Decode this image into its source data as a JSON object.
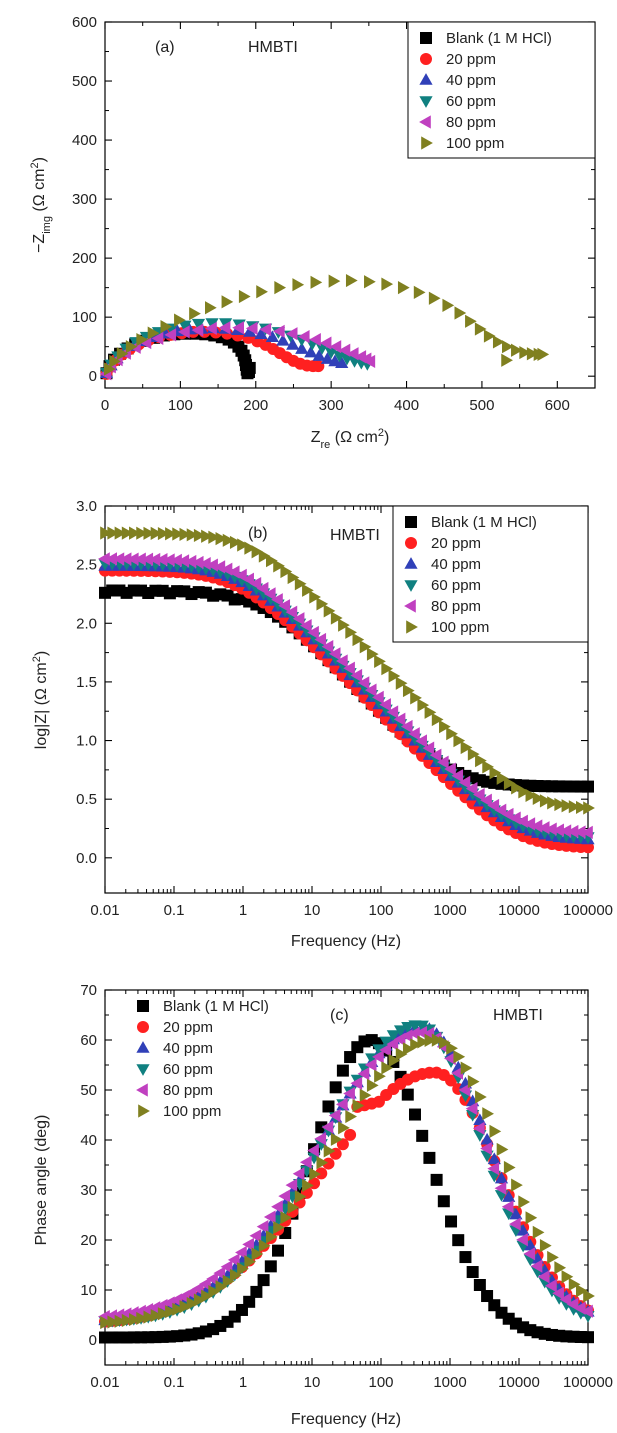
{
  "colors": {
    "Blank (1 M HCl)": "#000000",
    "20 ppm": "#ff2020",
    "40 ppm": "#3040b8",
    "60 ppm": "#108080",
    "80 ppm": "#c040c0",
    "100 ppm": "#808020"
  },
  "chart_data": [
    {
      "type": "scatter",
      "panel_label": "(a)",
      "annotation": "HMBTI",
      "title": "",
      "xlabel": {
        "main": "Z",
        "sub": "re",
        "unit_open": " (Ω cm",
        "sup": "2",
        "unit_close": ")"
      },
      "ylabel": {
        "main": "−Z",
        "sub": "img",
        "unit_open": " (Ω cm",
        "sup": "2",
        "unit_close": ")"
      },
      "xlim": [
        0,
        650
      ],
      "ylim": [
        -20,
        600
      ],
      "xticks": [
        0,
        100,
        200,
        300,
        400,
        500,
        600
      ],
      "yticks": [
        0,
        100,
        200,
        300,
        400,
        500,
        600
      ],
      "legend": "top-right",
      "series": [
        {
          "name": "Blank (1 M HCl)",
          "marker": "square",
          "points": [
            [
              2,
              5
            ],
            [
              6,
              17
            ],
            [
              12,
              28
            ],
            [
              20,
              38
            ],
            [
              30,
              47
            ],
            [
              40,
              54
            ],
            [
              52,
              60
            ],
            [
              65,
              65
            ],
            [
              78,
              69
            ],
            [
              92,
              71
            ],
            [
              106,
              72
            ],
            [
              120,
              72
            ],
            [
              133,
              71
            ],
            [
              145,
              69
            ],
            [
              155,
              66
            ],
            [
              164,
              62
            ],
            [
              171,
              57
            ],
            [
              177,
              50
            ],
            [
              181,
              43
            ],
            [
              184,
              35
            ],
            [
              186,
              27
            ],
            [
              187,
              19
            ],
            [
              188,
              11
            ],
            [
              189,
              5
            ],
            [
              191,
              7
            ],
            [
              192,
              14
            ]
          ]
        },
        {
          "name": "20 ppm",
          "marker": "circle",
          "points": [
            [
              2,
              4
            ],
            [
              7,
              16
            ],
            [
              14,
              27
            ],
            [
              23,
              37
            ],
            [
              33,
              46
            ],
            [
              45,
              54
            ],
            [
              58,
              61
            ],
            [
              72,
              66
            ],
            [
              87,
              70
            ],
            [
              102,
              73
            ],
            [
              117,
              75
            ],
            [
              132,
              75
            ],
            [
              147,
              74
            ],
            [
              162,
              72
            ],
            [
              176,
              69
            ],
            [
              190,
              65
            ],
            [
              202,
              59
            ],
            [
              213,
              53
            ],
            [
              223,
              46
            ],
            [
              232,
              39
            ],
            [
              241,
              32
            ],
            [
              250,
              26
            ],
            [
              259,
              21
            ],
            [
              268,
              18
            ],
            [
              276,
              17
            ],
            [
              283,
              17
            ]
          ]
        },
        {
          "name": "40 ppm",
          "marker": "triangle-up",
          "points": [
            [
              2,
              5
            ],
            [
              8,
              18
            ],
            [
              16,
              30
            ],
            [
              26,
              41
            ],
            [
              38,
              51
            ],
            [
              51,
              59
            ],
            [
              65,
              66
            ],
            [
              80,
              72
            ],
            [
              96,
              76
            ],
            [
              112,
              79
            ],
            [
              128,
              80
            ],
            [
              144,
              81
            ],
            [
              160,
              80
            ],
            [
              176,
              78
            ],
            [
              192,
              75
            ],
            [
              207,
              71
            ],
            [
              222,
              66
            ],
            [
              236,
              60
            ],
            [
              249,
              53
            ],
            [
              261,
              46
            ],
            [
              273,
              40
            ],
            [
              284,
              34
            ],
            [
              295,
              29
            ],
            [
              305,
              25
            ],
            [
              314,
              22
            ]
          ]
        },
        {
          "name": "60 ppm",
          "marker": "triangle-down",
          "points": [
            [
              2,
              6
            ],
            [
              8,
              20
            ],
            [
              17,
              34
            ],
            [
              28,
              47
            ],
            [
              41,
              58
            ],
            [
              55,
              67
            ],
            [
              71,
              75
            ],
            [
              88,
              81
            ],
            [
              106,
              86
            ],
            [
              124,
              89
            ],
            [
              142,
              90
            ],
            [
              160,
              90
            ],
            [
              178,
              88
            ],
            [
              196,
              85
            ],
            [
              213,
              81
            ],
            [
              230,
              75
            ],
            [
              246,
              69
            ],
            [
              261,
              62
            ],
            [
              275,
              55
            ],
            [
              288,
              48
            ],
            [
              300,
              41
            ],
            [
              311,
              35
            ],
            [
              321,
              30
            ],
            [
              331,
              26
            ],
            [
              340,
              23
            ],
            [
              348,
              21
            ]
          ]
        },
        {
          "name": "80 ppm",
          "marker": "triangle-left",
          "points": [
            [
              2,
              4
            ],
            [
              8,
              16
            ],
            [
              17,
              28
            ],
            [
              28,
              39
            ],
            [
              41,
              49
            ],
            [
              55,
              57
            ],
            [
              71,
              64
            ],
            [
              88,
              70
            ],
            [
              106,
              75
            ],
            [
              124,
              78
            ],
            [
              142,
              81
            ],
            [
              160,
              82
            ],
            [
              178,
              82
            ],
            [
              196,
              81
            ],
            [
              214,
              79
            ],
            [
              232,
              76
            ],
            [
              249,
              72
            ],
            [
              265,
              67
            ],
            [
              280,
              62
            ],
            [
              294,
              56
            ],
            [
              307,
              50
            ],
            [
              319,
              44
            ],
            [
              330,
              38
            ],
            [
              340,
              33
            ],
            [
              347,
              29
            ],
            [
              352,
              25
            ]
          ]
        },
        {
          "name": "100 ppm",
          "marker": "triangle-right",
          "points": [
            [
              5,
              12
            ],
            [
              12,
              25
            ],
            [
              22,
              38
            ],
            [
              34,
              50
            ],
            [
              48,
              62
            ],
            [
              63,
              73
            ],
            [
              80,
              84
            ],
            [
              98,
              95
            ],
            [
              118,
              106
            ],
            [
              139,
              116
            ],
            [
              161,
              126
            ],
            [
              184,
              135
            ],
            [
              207,
              143
            ],
            [
              231,
              150
            ],
            [
              255,
              155
            ],
            [
              279,
              159
            ],
            [
              303,
              161
            ],
            [
              326,
              162
            ],
            [
              350,
              160
            ],
            [
              373,
              156
            ],
            [
              395,
              150
            ],
            [
              416,
              142
            ],
            [
              436,
              132
            ],
            [
              454,
              120
            ],
            [
              470,
              107
            ],
            [
              484,
              93
            ],
            [
              497,
              80
            ],
            [
              509,
              68
            ],
            [
              521,
              58
            ],
            [
              533,
              50
            ],
            [
              545,
              44
            ],
            [
              556,
              40
            ],
            [
              566,
              38
            ],
            [
              575,
              37
            ],
            [
              580,
              37
            ],
            [
              532,
              27
            ]
          ]
        }
      ]
    },
    {
      "type": "scatter",
      "panel_label": "(b)",
      "annotation": "HMBTI",
      "title": "",
      "xscale": "log",
      "xlabel": "Frequency (Hz)",
      "ylabel": {
        "main": "log|Z| (Ω cm",
        "sup": "2",
        "close": ")"
      },
      "xlim": [
        0.01,
        100000
      ],
      "ylim": [
        -0.3,
        3.0
      ],
      "xticks": [
        0.01,
        0.1,
        1,
        10,
        100,
        1000,
        10000,
        100000
      ],
      "xtick_labels": [
        "0.01",
        "0.1",
        "1",
        "10",
        "100",
        "1000",
        "10000",
        "100000"
      ],
      "yticks": [
        0.0,
        0.5,
        1.0,
        1.5,
        2.0,
        2.5,
        3.0
      ],
      "ytick_labels": [
        "0.0",
        "0.5",
        "1.0",
        "1.5",
        "2.0",
        "2.5",
        "3.0"
      ],
      "legend": "top-right",
      "series": [
        {
          "name": "Blank (1 M HCl)",
          "marker": "square",
          "plateau_low": 2.28,
          "plateau_high": 0.54,
          "corner_low": 2.0,
          "corner_high": 1000,
          "slope": 0.62
        },
        {
          "name": "20 ppm",
          "marker": "circle",
          "plateau_low": 2.45,
          "plateau_high": -0.07,
          "corner_low": 0.9,
          "corner_high": 8000,
          "slope": 0.6
        },
        {
          "name": "40 ppm",
          "marker": "triangle-up",
          "plateau_low": 2.49,
          "plateau_high": -0.09,
          "corner_low": 1.0,
          "corner_high": 8000,
          "slope": 0.6
        },
        {
          "name": "60 ppm",
          "marker": "triangle-down",
          "plateau_low": 2.51,
          "plateau_high": -0.11,
          "corner_low": 1.0,
          "corner_high": 8000,
          "slope": 0.6
        },
        {
          "name": "80 ppm",
          "marker": "triangle-left",
          "plateau_low": 2.55,
          "plateau_high": -0.08,
          "corner_low": 1.0,
          "corner_high": 8000,
          "slope": 0.6
        },
        {
          "name": "100 ppm",
          "marker": "triangle-right",
          "plateau_low": 2.77,
          "plateau_high": -0.02,
          "corner_low": 1.4,
          "corner_high": 12000,
          "slope": 0.6
        }
      ]
    },
    {
      "type": "scatter",
      "panel_label": "(c)",
      "annotation": "HMBTI",
      "title": "",
      "xscale": "log",
      "xlabel": "Frequency (Hz)",
      "ylabel": "Phase angle (deg)",
      "xlim": [
        0.01,
        100000
      ],
      "ylim": [
        -5,
        70
      ],
      "xticks": [
        0.01,
        0.1,
        1,
        10,
        100,
        1000,
        10000,
        100000
      ],
      "xtick_labels": [
        "0.01",
        "0.1",
        "1",
        "10",
        "100",
        "1000",
        "10000",
        "100000"
      ],
      "yticks": [
        0,
        10,
        20,
        30,
        40,
        50,
        60,
        70
      ],
      "legend": "top-left",
      "series": [
        {
          "name": "Blank (1 M HCl)",
          "marker": "square",
          "baseline": 0.5,
          "peak": 60,
          "peak_freq": 70,
          "width_low": 0.55,
          "width_high": 0.55,
          "tail_high": 0.5
        },
        {
          "name": "20 ppm",
          "marker": "circle",
          "baseline": 3.0,
          "peak": 53.5,
          "peak_freq": 600,
          "width_low": 1.05,
          "width_high": 0.6,
          "tail_high": 3.0,
          "shoulder": 50
        },
        {
          "name": "40 ppm",
          "marker": "triangle-up",
          "baseline": 3.5,
          "peak": 62.5,
          "peak_freq": 400,
          "width_low": 0.95,
          "width_high": 0.62,
          "tail_high": 3.0
        },
        {
          "name": "60 ppm",
          "marker": "triangle-down",
          "baseline": 3.5,
          "peak": 63,
          "peak_freq": 350,
          "width_low": 0.9,
          "width_high": 0.6,
          "tail_high": 3.0
        },
        {
          "name": "80 ppm",
          "marker": "triangle-left",
          "baseline": 4.0,
          "peak": 61.5,
          "peak_freq": 420,
          "width_low": 1.0,
          "width_high": 0.58,
          "tail_high": 4.0
        },
        {
          "name": "100 ppm",
          "marker": "triangle-right",
          "baseline": 3.0,
          "peak": 60,
          "peak_freq": 600,
          "width_low": 1.0,
          "width_high": 0.62,
          "tail_high": 5.0
        }
      ]
    }
  ]
}
